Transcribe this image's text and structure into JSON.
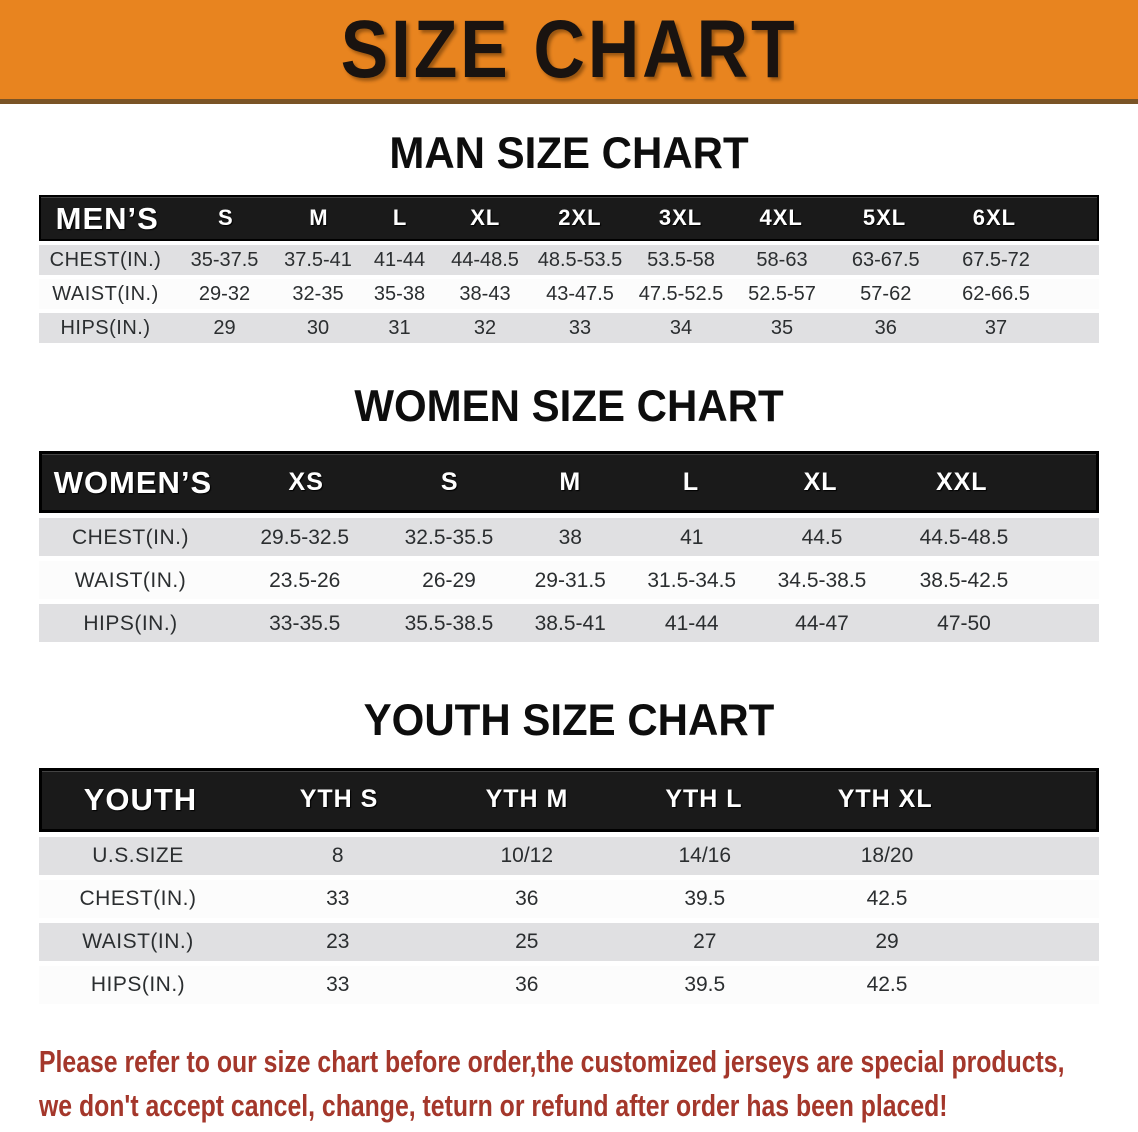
{
  "banner": {
    "title": "SIZE CHART"
  },
  "sections": [
    {
      "title": "MAN SIZE CHART",
      "table": {
        "header": [
          "MEN’S",
          "S",
          "M",
          "L",
          "XL",
          "2XL",
          "3XL",
          "4XL",
          "5XL",
          "6XL"
        ],
        "rows": [
          {
            "label": "CHEST(IN.)",
            "shade": true,
            "values": [
              "35-37.5",
              "37.5-41",
              "41-44",
              "44-48.5",
              "48.5-53.5",
              "53.5-58",
              "58-63",
              "63-67.5",
              "67.5-72"
            ]
          },
          {
            "label": "WAIST(IN.)",
            "shade": false,
            "values": [
              "29-32",
              "32-35",
              "35-38",
              "38-43",
              "43-47.5",
              "47.5-52.5",
              "52.5-57",
              "57-62",
              "62-66.5"
            ]
          },
          {
            "label": "HIPS(IN.)",
            "shade": true,
            "values": [
              "29",
              "30",
              "31",
              "32",
              "33",
              "34",
              "35",
              "36",
              "37"
            ]
          }
        ]
      }
    },
    {
      "title": "WOMEN SIZE CHART",
      "table": {
        "header": [
          "WOMEN’S",
          "XS",
          "S",
          "M",
          "L",
          "XL",
          "XXL"
        ],
        "rows": [
          {
            "label": "CHEST(IN.)",
            "shade": true,
            "values": [
              "29.5-32.5",
              "32.5-35.5",
              "38",
              "41",
              "44.5",
              "44.5-48.5"
            ]
          },
          {
            "label": "WAIST(IN.)",
            "shade": false,
            "values": [
              "23.5-26",
              "26-29",
              "29-31.5",
              "31.5-34.5",
              "34.5-38.5",
              "38.5-42.5"
            ]
          },
          {
            "label": "HIPS(IN.)",
            "shade": true,
            "values": [
              "33-35.5",
              "35.5-38.5",
              "38.5-41",
              "41-44",
              "44-47",
              "47-50"
            ]
          }
        ]
      }
    },
    {
      "title": "YOUTH SIZE CHART",
      "table": {
        "header": [
          "YOUTH",
          "YTH S",
          "YTH M",
          "YTH L",
          "YTH XL"
        ],
        "rows": [
          {
            "label": "U.S.SIZE",
            "shade": true,
            "values": [
              "8",
              "10/12",
              "14/16",
              "18/20"
            ]
          },
          {
            "label": "CHEST(IN.)",
            "shade": false,
            "values": [
              "33",
              "36",
              "39.5",
              "42.5"
            ]
          },
          {
            "label": "WAIST(IN.)",
            "shade": true,
            "values": [
              "23",
              "25",
              "27",
              "29"
            ]
          },
          {
            "label": "HIPS(IN.)",
            "shade": false,
            "values": [
              "33",
              "36",
              "39.5",
              "42.5"
            ]
          }
        ]
      }
    }
  ],
  "footer": {
    "lines": [
      "Please refer to our size chart before order,the customized jerseys are special products,",
      "we don't accept cancel, change, teturn or refund after order has been placed!"
    ]
  },
  "colors": {
    "banner-bg": "#E8841F",
    "banner-border": "#7A5426",
    "banner-text": "#191310",
    "bar-bg": "#1A1A1A",
    "bar-text": "#FFFFFF",
    "row-shade": "#E0E0E2",
    "row-plain": "#FCFCFC",
    "cell-text": "#2B2E30",
    "footer-text": "#A4372B"
  }
}
